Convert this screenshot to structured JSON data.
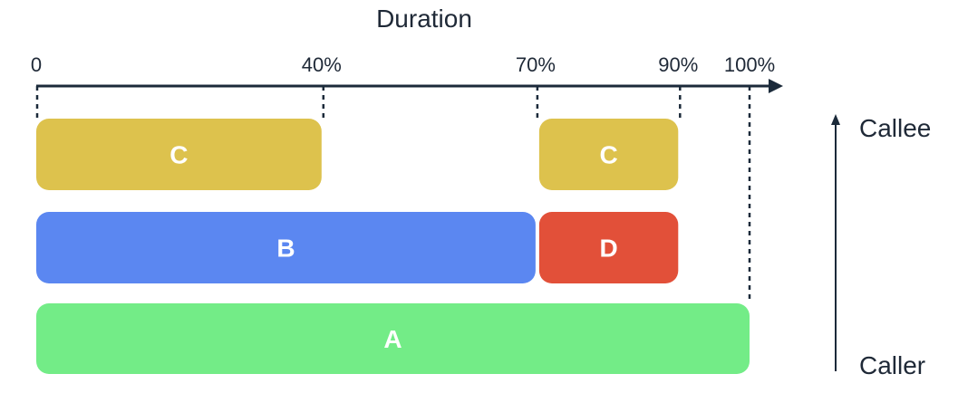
{
  "title": "Duration",
  "ticks": [
    {
      "label": "0",
      "value": 0
    },
    {
      "label": "40%",
      "value": 40
    },
    {
      "label": "70%",
      "value": 70
    },
    {
      "label": "90%",
      "value": 90
    },
    {
      "label": "100%",
      "value": 100
    }
  ],
  "bars": [
    {
      "label": "C",
      "level": "callee",
      "start": 0,
      "end": 40,
      "color": "#ddc24d"
    },
    {
      "label": "C",
      "level": "callee",
      "start": 70,
      "end": 90,
      "color": "#ddc24d"
    },
    {
      "label": "B",
      "level": "middle",
      "start": 0,
      "end": 70,
      "color": "#5b87f1"
    },
    {
      "label": "D",
      "level": "middle",
      "start": 70,
      "end": 90,
      "color": "#e25039"
    },
    {
      "label": "A",
      "level": "caller",
      "start": 0,
      "end": 100,
      "color": "#73ec87"
    }
  ],
  "hierarchy": {
    "top_label": "Callee",
    "bottom_label": "Caller"
  },
  "colors": {
    "axis": "#1b2a3a",
    "text": "#1f2937"
  }
}
